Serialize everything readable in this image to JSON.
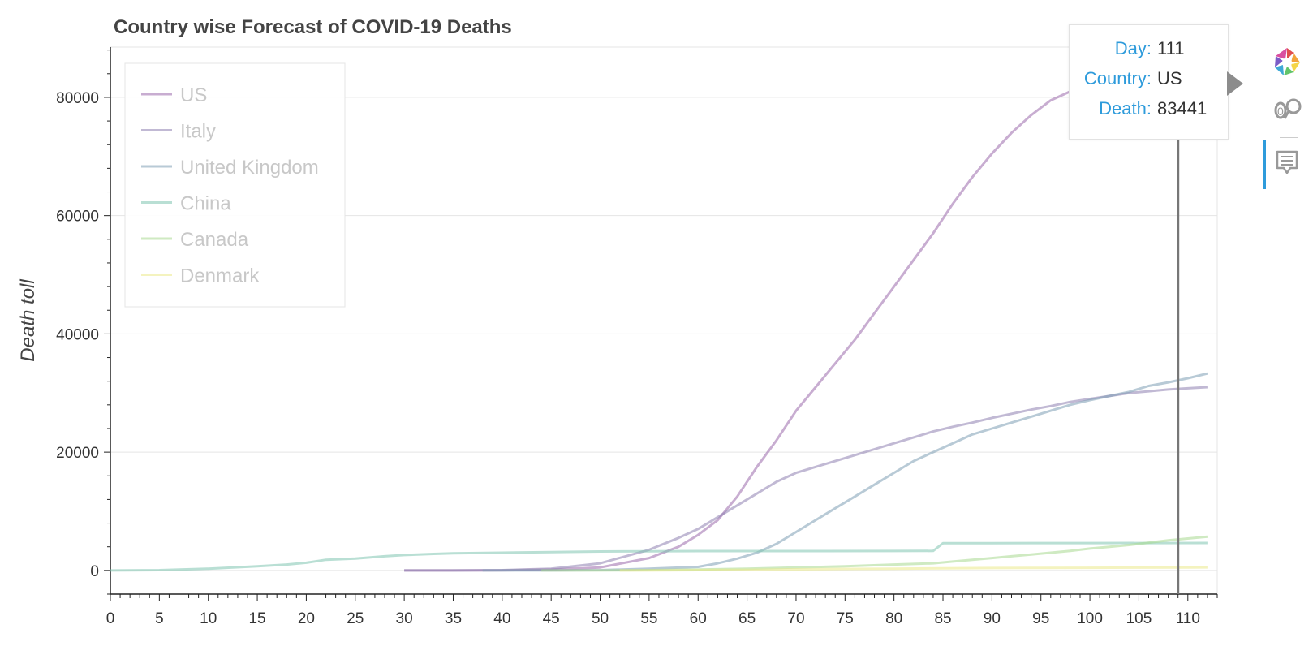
{
  "title": "Country wise Forecast of COVID-19 Deaths",
  "chart_data": {
    "type": "line",
    "title": "Country wise Forecast of COVID-19 Deaths",
    "xlabel": "",
    "ylabel": "Death toll",
    "xlim": [
      0,
      113
    ],
    "ylim": [
      -4000,
      88500
    ],
    "x_ticks": [
      0,
      5,
      10,
      15,
      20,
      25,
      30,
      35,
      40,
      45,
      50,
      55,
      60,
      65,
      70,
      75,
      80,
      85,
      90,
      95,
      100,
      105,
      110
    ],
    "y_ticks": [
      0,
      20000,
      40000,
      60000,
      80000
    ],
    "grid": "horizontal",
    "legend_position": "top-left",
    "series": [
      {
        "name": "US",
        "color": "#9b6aab",
        "points": [
          [
            30,
            0
          ],
          [
            35,
            0
          ],
          [
            40,
            20
          ],
          [
            45,
            150
          ],
          [
            50,
            500
          ],
          [
            55,
            2100
          ],
          [
            58,
            4000
          ],
          [
            60,
            6000
          ],
          [
            62,
            8500
          ],
          [
            64,
            12500
          ],
          [
            66,
            17500
          ],
          [
            68,
            22000
          ],
          [
            70,
            27000
          ],
          [
            72,
            31000
          ],
          [
            74,
            35000
          ],
          [
            76,
            39000
          ],
          [
            78,
            43500
          ],
          [
            80,
            48000
          ],
          [
            82,
            52500
          ],
          [
            84,
            57000
          ],
          [
            86,
            62000
          ],
          [
            88,
            66500
          ],
          [
            90,
            70500
          ],
          [
            92,
            74000
          ],
          [
            94,
            77000
          ],
          [
            96,
            79500
          ],
          [
            98,
            81000
          ],
          [
            100,
            82200
          ],
          [
            102,
            83000
          ],
          [
            104,
            83300
          ],
          [
            106,
            83400
          ],
          [
            108,
            83441
          ],
          [
            110,
            83441
          ],
          [
            112,
            84500
          ]
        ]
      },
      {
        "name": "Italy",
        "color": "#8e80b0",
        "points": [
          [
            30,
            0
          ],
          [
            35,
            0
          ],
          [
            40,
            50
          ],
          [
            45,
            300
          ],
          [
            50,
            1200
          ],
          [
            55,
            3500
          ],
          [
            58,
            5500
          ],
          [
            60,
            7000
          ],
          [
            62,
            9000
          ],
          [
            64,
            11000
          ],
          [
            66,
            13000
          ],
          [
            68,
            15000
          ],
          [
            70,
            16500
          ],
          [
            72,
            17500
          ],
          [
            74,
            18500
          ],
          [
            76,
            19500
          ],
          [
            78,
            20500
          ],
          [
            80,
            21500
          ],
          [
            82,
            22500
          ],
          [
            84,
            23500
          ],
          [
            86,
            24300
          ],
          [
            88,
            25000
          ],
          [
            90,
            25800
          ],
          [
            92,
            26500
          ],
          [
            94,
            27200
          ],
          [
            96,
            27800
          ],
          [
            98,
            28500
          ],
          [
            100,
            29000
          ],
          [
            102,
            29500
          ],
          [
            104,
            30000
          ],
          [
            106,
            30300
          ],
          [
            108,
            30600
          ],
          [
            110,
            30800
          ],
          [
            112,
            31000
          ]
        ]
      },
      {
        "name": "United Kingdom",
        "color": "#7d9fb5",
        "points": [
          [
            38,
            0
          ],
          [
            45,
            0
          ],
          [
            50,
            50
          ],
          [
            55,
            300
          ],
          [
            60,
            600
          ],
          [
            62,
            1200
          ],
          [
            64,
            2000
          ],
          [
            66,
            3000
          ],
          [
            68,
            4500
          ],
          [
            70,
            6500
          ],
          [
            72,
            8500
          ],
          [
            74,
            10500
          ],
          [
            76,
            12500
          ],
          [
            78,
            14500
          ],
          [
            80,
            16500
          ],
          [
            82,
            18500
          ],
          [
            84,
            20000
          ],
          [
            86,
            21500
          ],
          [
            88,
            23000
          ],
          [
            90,
            24000
          ],
          [
            92,
            25000
          ],
          [
            94,
            26000
          ],
          [
            96,
            27000
          ],
          [
            98,
            28000
          ],
          [
            100,
            28800
          ],
          [
            102,
            29500
          ],
          [
            104,
            30200
          ],
          [
            106,
            31200
          ],
          [
            108,
            31800
          ],
          [
            110,
            32500
          ],
          [
            112,
            33300
          ]
        ]
      },
      {
        "name": "China",
        "color": "#7fc4b0",
        "points": [
          [
            0,
            0
          ],
          [
            5,
            50
          ],
          [
            10,
            300
          ],
          [
            15,
            700
          ],
          [
            18,
            1000
          ],
          [
            20,
            1300
          ],
          [
            22,
            1800
          ],
          [
            25,
            2000
          ],
          [
            28,
            2400
          ],
          [
            30,
            2600
          ],
          [
            33,
            2800
          ],
          [
            35,
            2900
          ],
          [
            40,
            3000
          ],
          [
            45,
            3100
          ],
          [
            50,
            3200
          ],
          [
            55,
            3250
          ],
          [
            60,
            3270
          ],
          [
            70,
            3280
          ],
          [
            80,
            3290
          ],
          [
            84,
            3300
          ],
          [
            85,
            4600
          ],
          [
            90,
            4620
          ],
          [
            100,
            4632
          ],
          [
            112,
            4640
          ]
        ]
      },
      {
        "name": "Canada",
        "color": "#a8d88f",
        "points": [
          [
            44,
            0
          ],
          [
            50,
            0
          ],
          [
            55,
            50
          ],
          [
            60,
            150
          ],
          [
            65,
            300
          ],
          [
            70,
            500
          ],
          [
            75,
            700
          ],
          [
            80,
            1000
          ],
          [
            84,
            1200
          ],
          [
            86,
            1500
          ],
          [
            88,
            1800
          ],
          [
            90,
            2100
          ],
          [
            92,
            2400
          ],
          [
            94,
            2700
          ],
          [
            96,
            3000
          ],
          [
            98,
            3300
          ],
          [
            100,
            3700
          ],
          [
            102,
            4000
          ],
          [
            104,
            4300
          ],
          [
            106,
            4700
          ],
          [
            108,
            5100
          ],
          [
            110,
            5400
          ],
          [
            112,
            5700
          ]
        ]
      },
      {
        "name": "Denmark",
        "color": "#ebe98a",
        "points": [
          [
            52,
            0
          ],
          [
            55,
            0
          ],
          [
            60,
            50
          ],
          [
            65,
            100
          ],
          [
            70,
            180
          ],
          [
            75,
            250
          ],
          [
            80,
            300
          ],
          [
            85,
            350
          ],
          [
            90,
            400
          ],
          [
            95,
            430
          ],
          [
            100,
            450
          ],
          [
            105,
            480
          ],
          [
            110,
            500
          ],
          [
            112,
            520
          ]
        ]
      }
    ],
    "hover_line_x": 109
  },
  "tooltip": {
    "rows": [
      {
        "label": "Day:",
        "value": "111"
      },
      {
        "label": "Country:",
        "value": "US"
      },
      {
        "label": "Death:",
        "value": "83441"
      }
    ]
  },
  "toolbar": {
    "icons": [
      "bokeh-logo-icon",
      "hover-tool-icon",
      "tooltip-icon"
    ],
    "accent_color": "#2e9bdb"
  }
}
